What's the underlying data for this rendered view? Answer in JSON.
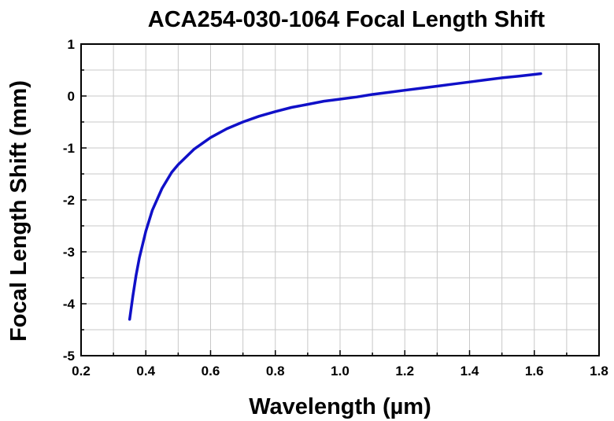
{
  "chart_data": {
    "type": "line",
    "title": "ACA254-030-1064 Focal Length Shift",
    "xlabel": "Wavelength (µm)",
    "ylabel": "Focal Length Shift (mm)",
    "xlim": [
      0.2,
      1.8
    ],
    "ylim": [
      -5,
      1
    ],
    "xticks": [
      "0.2",
      "0.4",
      "0.6",
      "0.8",
      "1.0",
      "1.2",
      "1.4",
      "1.6",
      "1.8"
    ],
    "yticks": [
      "1",
      "0",
      "-1",
      "-2",
      "-3",
      "-4",
      "-5"
    ],
    "grid": true,
    "legend": "none",
    "series": [
      {
        "color": "#1010c8",
        "x": [
          0.35,
          0.36,
          0.37,
          0.38,
          0.4,
          0.42,
          0.45,
          0.48,
          0.5,
          0.55,
          0.6,
          0.65,
          0.7,
          0.75,
          0.8,
          0.85,
          0.9,
          0.95,
          1.0,
          1.05,
          1.1,
          1.15,
          1.2,
          1.25,
          1.3,
          1.35,
          1.4,
          1.45,
          1.5,
          1.55,
          1.62
        ],
        "y": [
          -4.3,
          -3.85,
          -3.45,
          -3.12,
          -2.6,
          -2.2,
          -1.78,
          -1.47,
          -1.32,
          -1.02,
          -0.8,
          -0.63,
          -0.5,
          -0.39,
          -0.3,
          -0.22,
          -0.16,
          -0.1,
          -0.06,
          -0.02,
          0.03,
          0.07,
          0.11,
          0.15,
          0.19,
          0.23,
          0.27,
          0.31,
          0.35,
          0.38,
          0.43
        ]
      }
    ]
  }
}
